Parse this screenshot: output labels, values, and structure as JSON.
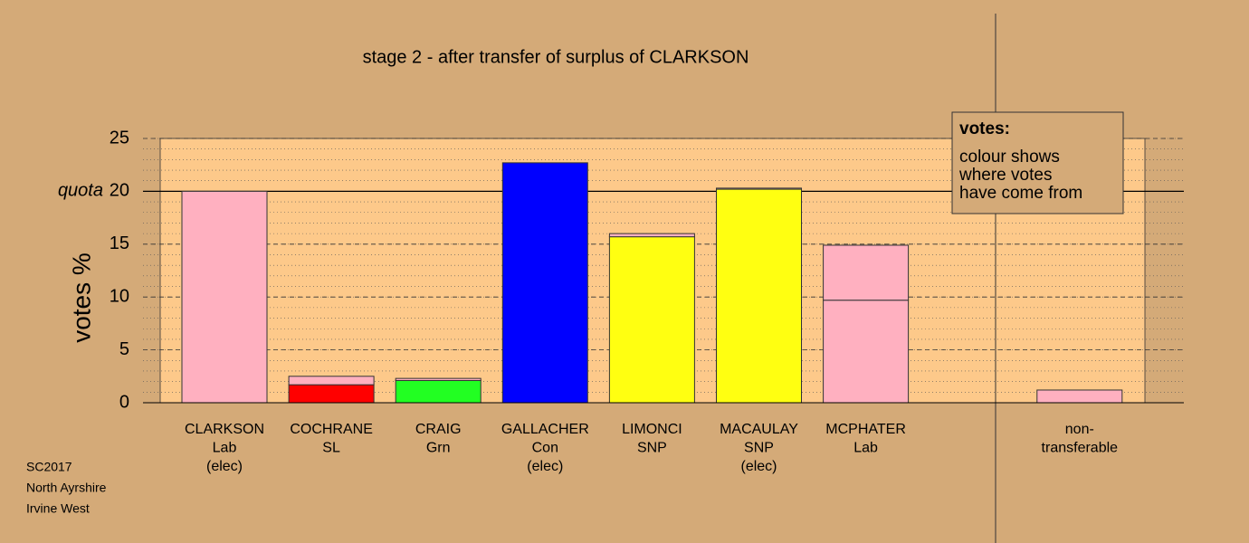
{
  "chart_data": {
    "type": "stacked-bar",
    "title": "stage 2 - after transfer of surplus of CLARKSON",
    "y_label": "votes %",
    "categories": [
      [
        "CLARKSON",
        "Lab",
        "(elec)"
      ],
      [
        "COCHRANE",
        "SL"
      ],
      [
        "CRAIG",
        "Grn"
      ],
      [
        "GALLACHER",
        "Con",
        "(elec)"
      ],
      [
        "LIMONCI",
        "SNP"
      ],
      [
        "MACAULAY",
        "SNP",
        "(elec)"
      ],
      [
        "MCPHATER",
        "Lab"
      ],
      null,
      [
        "non-",
        "transferable"
      ]
    ],
    "series": [
      {
        "values": [
          20,
          1.7,
          2.1,
          22.7,
          15.7,
          20.2,
          9.7,
          null,
          null
        ],
        "colors": [
          "#ffb0c0",
          "#ff0000",
          "#22ff22",
          "#0000ff",
          "#ffff11",
          "#ffff11",
          "#ffb0c0",
          null,
          null
        ]
      },
      {
        "values": [
          null,
          0.8,
          0.2,
          null,
          0.3,
          0.1,
          5.2,
          null,
          1.2
        ],
        "color": "#ffb0c0"
      }
    ],
    "ylim": [
      0,
      25
    ],
    "yticks": [
      0,
      5,
      10,
      15,
      20,
      25
    ],
    "minor_grid_step": 1,
    "quota": {
      "label": "quota",
      "value": 20
    },
    "legend": {
      "title": "votes:",
      "lines": [
        "colour shows",
        "where votes",
        "have come from"
      ]
    },
    "footnote": [
      "SC2017",
      "North Ayrshire",
      "Irvine West"
    ]
  }
}
